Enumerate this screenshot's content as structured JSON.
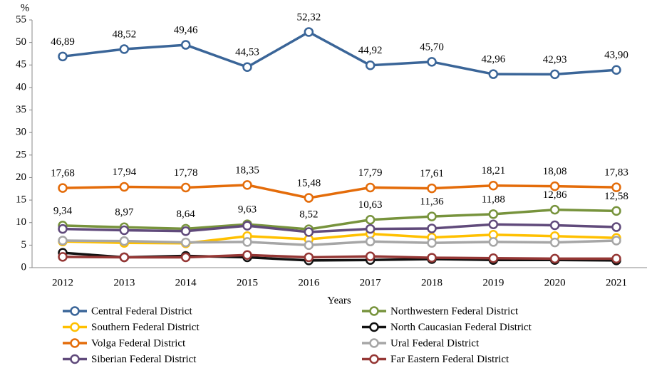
{
  "chart_data": {
    "type": "line",
    "y_axis_label": "%",
    "x_axis_label": "Years",
    "categories": [
      "2012",
      "2013",
      "2014",
      "2015",
      "2016",
      "2017",
      "2018",
      "2019",
      "2020",
      "2021"
    ],
    "ylim": [
      0,
      55
    ],
    "yticks": [
      0,
      5,
      10,
      15,
      20,
      25,
      30,
      35,
      40,
      45,
      50,
      55
    ],
    "series": [
      {
        "name": "Central Federal District",
        "color": "#3a6598",
        "values": [
          46.89,
          48.52,
          49.46,
          44.53,
          52.32,
          44.92,
          45.7,
          42.96,
          42.93,
          43.9
        ],
        "value_labels": [
          "46,89",
          "48,52",
          "49,46",
          "44,53",
          "52,32",
          "44,92",
          "45,70",
          "42,96",
          "42,93",
          "43,90"
        ]
      },
      {
        "name": "Northwestern Federal District",
        "color": "#77933c",
        "values": [
          9.34,
          8.97,
          8.64,
          9.63,
          8.52,
          10.63,
          11.36,
          11.88,
          12.86,
          12.58
        ],
        "value_labels": [
          "9,34",
          "8,97",
          "8,64",
          "9,63",
          "8,52",
          "10,63",
          "11,36",
          "11,88",
          "12,86",
          "12,58"
        ]
      },
      {
        "name": "Southern Federal District",
        "color": "#ffc000",
        "values": [
          5.8,
          5.5,
          5.4,
          7.0,
          6.3,
          7.5,
          6.7,
          7.3,
          7.0,
          6.6
        ]
      },
      {
        "name": "North Caucasian Federal District",
        "color": "#111111",
        "values": [
          3.3,
          2.3,
          2.6,
          2.3,
          1.6,
          1.7,
          1.9,
          1.7,
          1.7,
          1.6
        ]
      },
      {
        "name": "Volga Federal District",
        "color": "#e46c0a",
        "values": [
          17.68,
          17.94,
          17.78,
          18.35,
          15.48,
          17.79,
          17.61,
          18.21,
          18.08,
          17.83
        ],
        "value_labels": [
          "17,68",
          "17,94",
          "17,78",
          "18,35",
          "15,48",
          "17,79",
          "17,61",
          "18,21",
          "18,08",
          "17,83"
        ]
      },
      {
        "name": "Ural Federal District",
        "color": "#a6a6a6",
        "values": [
          6.0,
          5.9,
          5.6,
          5.7,
          5.0,
          5.8,
          5.5,
          5.7,
          5.6,
          6.0
        ]
      },
      {
        "name": "Siberian Federal District",
        "color": "#604a7b",
        "values": [
          8.6,
          8.3,
          8.1,
          9.3,
          7.9,
          8.6,
          8.7,
          9.6,
          9.4,
          9.0
        ]
      },
      {
        "name": "Far Eastern Federal District",
        "color": "#953735",
        "values": [
          2.4,
          2.3,
          2.3,
          2.8,
          2.3,
          2.5,
          2.2,
          2.1,
          2.0,
          2.0
        ]
      }
    ]
  }
}
